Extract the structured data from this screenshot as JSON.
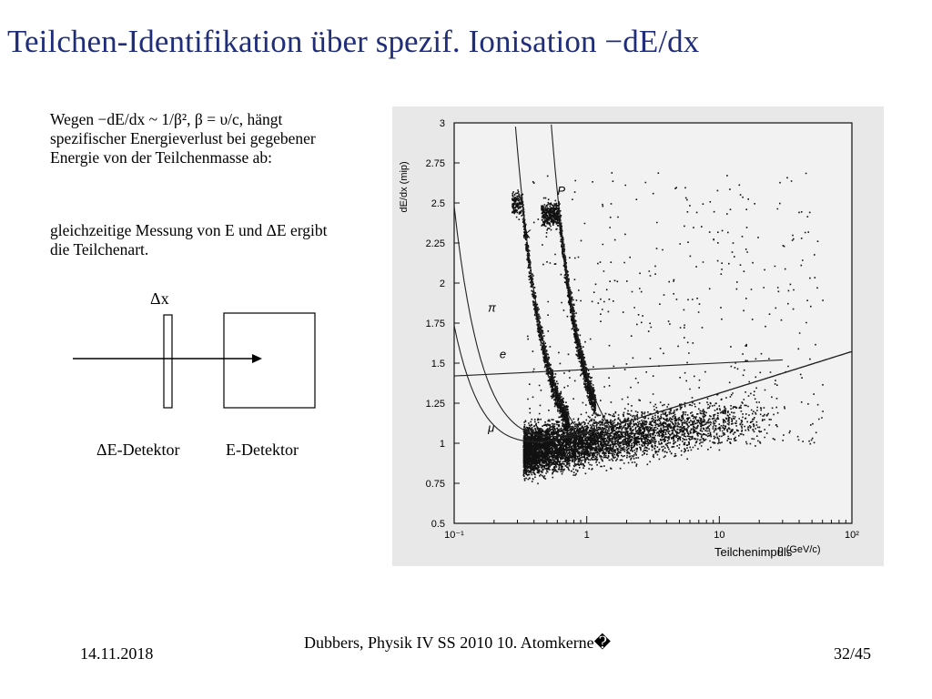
{
  "title": "Teilchen-Identifikation über spezif. Ionisation −dE/dx",
  "text": {
    "para1": "Wegen −dE/dx ~ 1/β², β = υ/c, hängt spezifischer Energieverlust bei gegebener Energie von der Teilchenmasse ab:",
    "para2": "gleichzeitige Messung von E und ΔE ergibt die Teilchenart."
  },
  "diagram": {
    "dx_label": "Δx",
    "de_detector_label": "ΔE-Detektor",
    "e_detector_label": "E-Detektor"
  },
  "chart_data": {
    "type": "scatter",
    "ylabel": "dE/dx (mip)",
    "xlabel": "p (GeV/c)",
    "x_annotation": "Teilchenimpuls",
    "x_scale": "log",
    "xlim": [
      0.1,
      100
    ],
    "ylim": [
      0.5,
      3
    ],
    "y_ticks": [
      "0.5",
      "0.75",
      "1",
      "1.25",
      "1.5",
      "1.75",
      "2",
      "2.25",
      "2.5",
      "2.75",
      "3"
    ],
    "x_ticks": [
      "10⁻¹",
      "1",
      "10",
      "10²"
    ],
    "band_labels": [
      "P",
      "K",
      "π",
      "e",
      "μ"
    ]
  },
  "footer": {
    "date": "14.11.2018",
    "center": "Dubbers, Physik IV SS 2010 10. Atomkerne�",
    "page": "32/45"
  }
}
